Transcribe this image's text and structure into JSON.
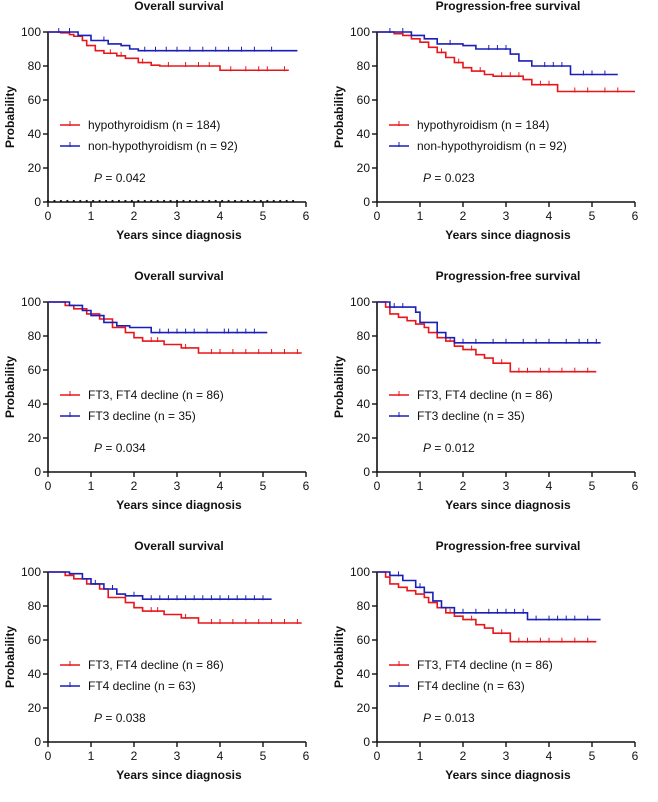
{
  "chart_data": [
    {
      "type": "line",
      "title": "Overall survival",
      "xlabel": "Years since diagnosis",
      "ylabel": "Probability",
      "xlim": [
        0,
        6
      ],
      "ylim": [
        0,
        100
      ],
      "xticks": [
        "0",
        "1",
        "2",
        "3",
        "4",
        "5",
        "6"
      ],
      "yticks": [
        "0",
        "20",
        "40",
        "60",
        "80",
        "100"
      ],
      "p_prefix": "P",
      "p_value": " = 0.042",
      "baseline_dotted": true,
      "series": [
        {
          "name": "hypothyroidism (n = 184)",
          "color": "#e8161b",
          "steps": [
            [
              0,
              100
            ],
            [
              0.3,
              99.5
            ],
            [
              0.5,
              98.5
            ],
            [
              0.6,
              97.5
            ],
            [
              0.8,
              95
            ],
            [
              0.9,
              92
            ],
            [
              1.1,
              89
            ],
            [
              1.3,
              87.5
            ],
            [
              1.6,
              86
            ],
            [
              1.8,
              84.5
            ],
            [
              2.1,
              82
            ],
            [
              2.4,
              80.5
            ],
            [
              2.6,
              80
            ],
            [
              4.0,
              77.5
            ],
            [
              5.6,
              77.5
            ]
          ],
          "censor": [
            1.45,
            1.7,
            2.2,
            2.8,
            3.2,
            3.5,
            3.75,
            4.25,
            4.6,
            4.9,
            5.1,
            5.5
          ]
        },
        {
          "name": "non-hypothyroidism (n = 92)",
          "color": "#1a1fb8",
          "steps": [
            [
              0,
              100
            ],
            [
              0.7,
              98
            ],
            [
              1.0,
              95
            ],
            [
              1.4,
              93
            ],
            [
              1.7,
              92
            ],
            [
              1.9,
              90
            ],
            [
              2.1,
              89
            ],
            [
              5.8,
              89
            ]
          ],
          "censor": [
            0.25,
            0.5,
            1.3,
            2.25,
            2.5,
            2.75,
            3.0,
            3.3,
            3.6,
            3.9,
            4.2,
            4.5,
            4.8,
            5.2
          ]
        }
      ]
    },
    {
      "type": "line",
      "title": "Progression-free survival",
      "xlabel": "Years since diagnosis",
      "ylabel": "Probability",
      "xlim": [
        0,
        6
      ],
      "ylim": [
        0,
        100
      ],
      "xticks": [
        "0",
        "1",
        "2",
        "3",
        "4",
        "5",
        "6"
      ],
      "yticks": [
        "0",
        "20",
        "40",
        "60",
        "80",
        "100"
      ],
      "p_prefix": "P",
      "p_value": " = 0.023",
      "series": [
        {
          "name": "hypothyroidism (n = 184)",
          "color": "#e8161b",
          "steps": [
            [
              0,
              100
            ],
            [
              0.4,
              99
            ],
            [
              0.6,
              98
            ],
            [
              0.8,
              96
            ],
            [
              1.0,
              94
            ],
            [
              1.2,
              91
            ],
            [
              1.4,
              88
            ],
            [
              1.6,
              85
            ],
            [
              1.8,
              82
            ],
            [
              2.0,
              79
            ],
            [
              2.2,
              77
            ],
            [
              2.5,
              75
            ],
            [
              2.7,
              74
            ],
            [
              3.4,
              72
            ],
            [
              3.6,
              69
            ],
            [
              4.2,
              65
            ],
            [
              6.0,
              65
            ]
          ],
          "censor": [
            1.5,
            1.9,
            2.4,
            2.9,
            3.1,
            3.3,
            3.8,
            4.0,
            4.6,
            4.9,
            5.3,
            5.6
          ]
        },
        {
          "name": "non-hypothyroidism (n = 92)",
          "color": "#1a1fb8",
          "steps": [
            [
              0,
              100
            ],
            [
              0.8,
              98
            ],
            [
              1.1,
              96
            ],
            [
              1.4,
              93
            ],
            [
              2.0,
              92
            ],
            [
              2.3,
              90
            ],
            [
              3.1,
              87
            ],
            [
              3.3,
              83
            ],
            [
              3.6,
              80
            ],
            [
              4.5,
              75
            ],
            [
              5.6,
              75
            ]
          ],
          "censor": [
            0.3,
            0.6,
            1.7,
            2.6,
            2.8,
            3.0,
            3.9,
            4.1,
            4.3,
            4.8,
            5.0,
            5.3
          ]
        }
      ]
    },
    {
      "type": "line",
      "title": "Overall survival",
      "xlabel": "Years since diagnosis",
      "ylabel": "Probability",
      "xlim": [
        0,
        6
      ],
      "ylim": [
        0,
        100
      ],
      "xticks": [
        "0",
        "1",
        "2",
        "3",
        "4",
        "5",
        "6"
      ],
      "yticks": [
        "0",
        "20",
        "40",
        "60",
        "80",
        "100"
      ],
      "p_prefix": "P",
      "p_value": " = 0.034",
      "series": [
        {
          "name": "FT3, FT4 decline (n = 86)",
          "color": "#e8161b",
          "steps": [
            [
              0,
              100
            ],
            [
              0.4,
              98
            ],
            [
              0.6,
              96
            ],
            [
              0.9,
              93
            ],
            [
              1.2,
              90
            ],
            [
              1.5,
              85
            ],
            [
              1.8,
              82
            ],
            [
              2.0,
              79
            ],
            [
              2.2,
              77
            ],
            [
              2.7,
              75
            ],
            [
              3.1,
              73
            ],
            [
              3.5,
              70
            ],
            [
              5.9,
              70
            ]
          ],
          "censor": [
            2.4,
            2.55,
            3.2,
            3.8,
            4.0,
            4.3,
            4.6,
            4.9,
            5.2,
            5.5,
            5.8
          ]
        },
        {
          "name": "FT3 decline (n = 35)",
          "color": "#1a1fb8",
          "steps": [
            [
              0,
              100
            ],
            [
              0.5,
              98
            ],
            [
              0.8,
              95
            ],
            [
              1.0,
              92
            ],
            [
              1.3,
              88
            ],
            [
              1.6,
              86
            ],
            [
              1.9,
              85
            ],
            [
              2.4,
              82
            ],
            [
              5.1,
              82
            ]
          ],
          "censor": [
            2.6,
            2.8,
            3.0,
            3.2,
            3.4,
            3.7,
            4.1,
            4.2,
            4.4,
            4.6,
            4.8
          ]
        }
      ]
    },
    {
      "type": "line",
      "title": "Progression-free survival",
      "xlabel": "Years since diagnosis",
      "ylabel": "Probability",
      "xlim": [
        0,
        6
      ],
      "ylim": [
        0,
        100
      ],
      "xticks": [
        "0",
        "1",
        "2",
        "3",
        "4",
        "5",
        "6"
      ],
      "yticks": [
        "0",
        "20",
        "40",
        "60",
        "80",
        "100"
      ],
      "p_prefix": "P",
      "p_value": " = 0.012",
      "series": [
        {
          "name": "FT3, FT4 decline (n = 86)",
          "color": "#e8161b",
          "steps": [
            [
              0,
              100
            ],
            [
              0.2,
              97
            ],
            [
              0.3,
              93
            ],
            [
              0.5,
              91
            ],
            [
              0.7,
              89
            ],
            [
              0.9,
              87
            ],
            [
              1.1,
              85
            ],
            [
              1.2,
              82
            ],
            [
              1.4,
              79
            ],
            [
              1.6,
              77
            ],
            [
              1.8,
              74
            ],
            [
              2.0,
              72
            ],
            [
              2.3,
              69
            ],
            [
              2.5,
              67
            ],
            [
              2.7,
              64
            ],
            [
              3.1,
              59
            ],
            [
              5.1,
              59
            ]
          ],
          "censor": [
            1.7,
            2.2,
            2.9,
            3.3,
            3.5,
            3.8,
            4.0,
            4.3,
            4.6,
            4.9
          ]
        },
        {
          "name": "FT3 decline (n = 35)",
          "color": "#1a1fb8",
          "steps": [
            [
              0,
              100
            ],
            [
              0.3,
              97
            ],
            [
              0.9,
              94
            ],
            [
              1.0,
              88
            ],
            [
              1.4,
              82
            ],
            [
              1.6,
              79
            ],
            [
              1.8,
              76
            ],
            [
              5.2,
              76
            ]
          ],
          "censor": [
            0.4,
            0.6,
            2.0,
            2.3,
            2.7,
            3.0,
            3.4,
            3.7,
            4.0,
            4.4,
            4.7,
            4.9,
            5.1
          ]
        }
      ]
    },
    {
      "type": "line",
      "title": "Overall survival",
      "xlabel": "Years since diagnosis",
      "ylabel": "Probability",
      "xlim": [
        0,
        6
      ],
      "ylim": [
        0,
        100
      ],
      "xticks": [
        "0",
        "1",
        "2",
        "3",
        "4",
        "5",
        "6"
      ],
      "yticks": [
        "0",
        "20",
        "40",
        "60",
        "80",
        "100"
      ],
      "p_prefix": "P",
      "p_value": " = 0.038",
      "series": [
        {
          "name": "FT3, FT4 decline (n = 86)",
          "color": "#e8161b",
          "steps": [
            [
              0,
              100
            ],
            [
              0.4,
              98
            ],
            [
              0.6,
              96
            ],
            [
              0.9,
              93
            ],
            [
              1.2,
              90
            ],
            [
              1.4,
              85
            ],
            [
              1.8,
              82
            ],
            [
              2.0,
              79
            ],
            [
              2.2,
              77
            ],
            [
              2.7,
              75
            ],
            [
              3.1,
              73
            ],
            [
              3.5,
              70
            ],
            [
              5.9,
              70
            ]
          ],
          "censor": [
            2.4,
            2.55,
            3.2,
            3.8,
            4.0,
            4.3,
            4.6,
            4.9,
            5.2,
            5.5,
            5.8
          ]
        },
        {
          "name": "FT4 decline (n = 63)",
          "color": "#1a1fb8",
          "steps": [
            [
              0,
              100
            ],
            [
              0.5,
              99
            ],
            [
              0.8,
              96
            ],
            [
              1.0,
              93
            ],
            [
              1.3,
              90
            ],
            [
              1.6,
              87
            ],
            [
              1.8,
              86
            ],
            [
              2.2,
              84
            ],
            [
              5.2,
              84
            ]
          ],
          "censor": [
            1.1,
            1.5,
            2.0,
            2.4,
            2.6,
            2.8,
            3.0,
            3.2,
            3.4,
            3.6,
            3.8,
            4.0,
            4.2,
            4.4,
            4.6,
            4.8,
            5.0
          ]
        }
      ]
    },
    {
      "type": "line",
      "title": "Progression-free survival",
      "xlabel": "Years since diagnosis",
      "ylabel": "Probability",
      "xlim": [
        0,
        6
      ],
      "ylim": [
        0,
        100
      ],
      "xticks": [
        "0",
        "1",
        "2",
        "3",
        "4",
        "5",
        "6"
      ],
      "yticks": [
        "0",
        "20",
        "40",
        "60",
        "80",
        "100"
      ],
      "p_prefix": "P",
      "p_value": " = 0.013",
      "series": [
        {
          "name": "FT3, FT4 decline (n = 86)",
          "color": "#e8161b",
          "steps": [
            [
              0,
              100
            ],
            [
              0.2,
              97
            ],
            [
              0.3,
              93
            ],
            [
              0.5,
              91
            ],
            [
              0.7,
              89
            ],
            [
              0.9,
              87
            ],
            [
              1.1,
              85
            ],
            [
              1.2,
              82
            ],
            [
              1.4,
              79
            ],
            [
              1.6,
              76
            ],
            [
              1.8,
              74
            ],
            [
              2.0,
              72
            ],
            [
              2.3,
              69
            ],
            [
              2.5,
              67
            ],
            [
              2.7,
              64
            ],
            [
              3.1,
              59
            ],
            [
              5.1,
              59
            ]
          ],
          "censor": [
            1.7,
            2.2,
            2.9,
            3.3,
            3.5,
            3.8,
            4.0,
            4.3,
            4.6,
            4.9
          ]
        },
        {
          "name": "FT4 decline (n = 63)",
          "color": "#1a1fb8",
          "steps": [
            [
              0,
              100
            ],
            [
              0.3,
              98
            ],
            [
              0.6,
              95
            ],
            [
              0.9,
              91
            ],
            [
              1.1,
              88
            ],
            [
              1.3,
              83
            ],
            [
              1.5,
              79
            ],
            [
              1.8,
              76
            ],
            [
              3.5,
              72
            ],
            [
              5.2,
              72
            ]
          ],
          "censor": [
            0.5,
            1.0,
            2.0,
            2.3,
            2.6,
            2.8,
            3.0,
            3.2,
            3.4,
            3.7,
            4.0,
            4.2,
            4.4,
            4.6,
            4.9
          ]
        }
      ]
    }
  ]
}
